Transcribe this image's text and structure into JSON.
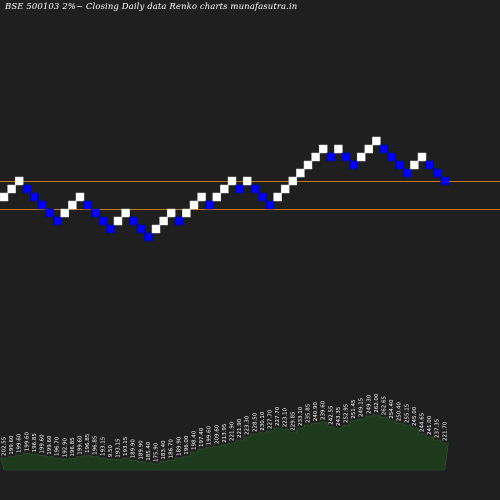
{
  "title": "BSE 500103 2%~  Closing Daily data  Renko  charts munafasutra.in",
  "colors": {
    "background": "#1f1f1f",
    "up_brick": "#ffffff",
    "down_brick": "#0000ff",
    "brick_border": "#0000cc",
    "reference_line": "#c87820",
    "volume_area": "#1d3a1d",
    "volume_outline": "#2f5a2f"
  },
  "chart_data": {
    "type": "renko",
    "brick_size_percent": 2,
    "bricks": [
      {
        "level": 0,
        "dir": "up"
      },
      {
        "level": 1,
        "dir": "up"
      },
      {
        "level": 2,
        "dir": "up"
      },
      {
        "level": 1,
        "dir": "down"
      },
      {
        "level": 0,
        "dir": "down"
      },
      {
        "level": -1,
        "dir": "down"
      },
      {
        "level": -2,
        "dir": "down"
      },
      {
        "level": -3,
        "dir": "down"
      },
      {
        "level": -2,
        "dir": "up"
      },
      {
        "level": -1,
        "dir": "up"
      },
      {
        "level": 0,
        "dir": "up"
      },
      {
        "level": -1,
        "dir": "down"
      },
      {
        "level": -2,
        "dir": "down"
      },
      {
        "level": -3,
        "dir": "down"
      },
      {
        "level": -4,
        "dir": "down"
      },
      {
        "level": -3,
        "dir": "up"
      },
      {
        "level": -2,
        "dir": "up"
      },
      {
        "level": -3,
        "dir": "down"
      },
      {
        "level": -4,
        "dir": "down"
      },
      {
        "level": -5,
        "dir": "down"
      },
      {
        "level": -4,
        "dir": "up"
      },
      {
        "level": -3,
        "dir": "up"
      },
      {
        "level": -2,
        "dir": "up"
      },
      {
        "level": -3,
        "dir": "down"
      },
      {
        "level": -2,
        "dir": "up"
      },
      {
        "level": -1,
        "dir": "up"
      },
      {
        "level": 0,
        "dir": "up"
      },
      {
        "level": -1,
        "dir": "down"
      },
      {
        "level": 0,
        "dir": "up"
      },
      {
        "level": 1,
        "dir": "up"
      },
      {
        "level": 2,
        "dir": "up"
      },
      {
        "level": 1,
        "dir": "down"
      },
      {
        "level": 2,
        "dir": "up"
      },
      {
        "level": 1,
        "dir": "down"
      },
      {
        "level": 0,
        "dir": "down"
      },
      {
        "level": -1,
        "dir": "down"
      },
      {
        "level": 0,
        "dir": "up"
      },
      {
        "level": 1,
        "dir": "up"
      },
      {
        "level": 2,
        "dir": "up"
      },
      {
        "level": 3,
        "dir": "up"
      },
      {
        "level": 4,
        "dir": "up"
      },
      {
        "level": 5,
        "dir": "up"
      },
      {
        "level": 6,
        "dir": "up"
      },
      {
        "level": 5,
        "dir": "down"
      },
      {
        "level": 6,
        "dir": "up"
      },
      {
        "level": 5,
        "dir": "down"
      },
      {
        "level": 4,
        "dir": "down"
      },
      {
        "level": 5,
        "dir": "up"
      },
      {
        "level": 6,
        "dir": "up"
      },
      {
        "level": 7,
        "dir": "up"
      },
      {
        "level": 6,
        "dir": "down"
      },
      {
        "level": 5,
        "dir": "down"
      },
      {
        "level": 4,
        "dir": "down"
      },
      {
        "level": 3,
        "dir": "down"
      },
      {
        "level": 4,
        "dir": "up"
      },
      {
        "level": 5,
        "dir": "up"
      },
      {
        "level": 4,
        "dir": "down"
      },
      {
        "level": 3,
        "dir": "down"
      },
      {
        "level": 2,
        "dir": "down"
      }
    ],
    "reference_levels": [
      2,
      -1.5
    ],
    "volume_labels": [
      "202.55",
      "199.60",
      "199.60",
      "199.60",
      "196.85",
      "199.60",
      "199.60",
      "196.70",
      "192.90",
      "196.85",
      "199.60",
      "196.85",
      "196.85",
      "193.15",
      "9.50",
      "193.15",
      "193.15",
      "189.90",
      "189.90",
      "185.40",
      "175.90",
      "183.40",
      "186.70",
      "189.90",
      "196.00",
      "198.40",
      "197.40",
      "199.60",
      "209.60",
      "213.95",
      "221.90",
      "221.90",
      "223.30",
      "228.50",
      "230.10",
      "227.70",
      "227.70",
      "223.10",
      "229.85",
      "233.10",
      "235.85",
      "240.90",
      "239.60",
      "242.55",
      "243.35",
      "252.95",
      "251.45",
      "249.15",
      "249.30",
      "262.00",
      "262.65",
      "254.40",
      "250.40",
      "255.15",
      "245.00",
      "244.65",
      "241.00",
      "237.35",
      "221.70"
    ],
    "volume_heights": [
      0.2,
      0.22,
      0.25,
      0.28,
      0.26,
      0.24,
      0.22,
      0.2,
      0.18,
      0.19,
      0.22,
      0.25,
      0.22,
      0.2,
      0.18,
      0.17,
      0.2,
      0.16,
      0.14,
      0.12,
      0.1,
      0.14,
      0.16,
      0.2,
      0.22,
      0.3,
      0.35,
      0.38,
      0.4,
      0.42,
      0.45,
      0.5,
      0.55,
      0.6,
      0.62,
      0.65,
      0.7,
      0.68,
      0.62,
      0.7,
      0.75,
      0.78,
      0.8,
      0.72,
      0.7,
      0.75,
      0.82,
      0.85,
      0.9,
      0.92,
      0.88,
      0.82,
      0.78,
      0.75,
      0.7,
      0.6,
      0.55,
      0.5,
      0.45
    ]
  }
}
